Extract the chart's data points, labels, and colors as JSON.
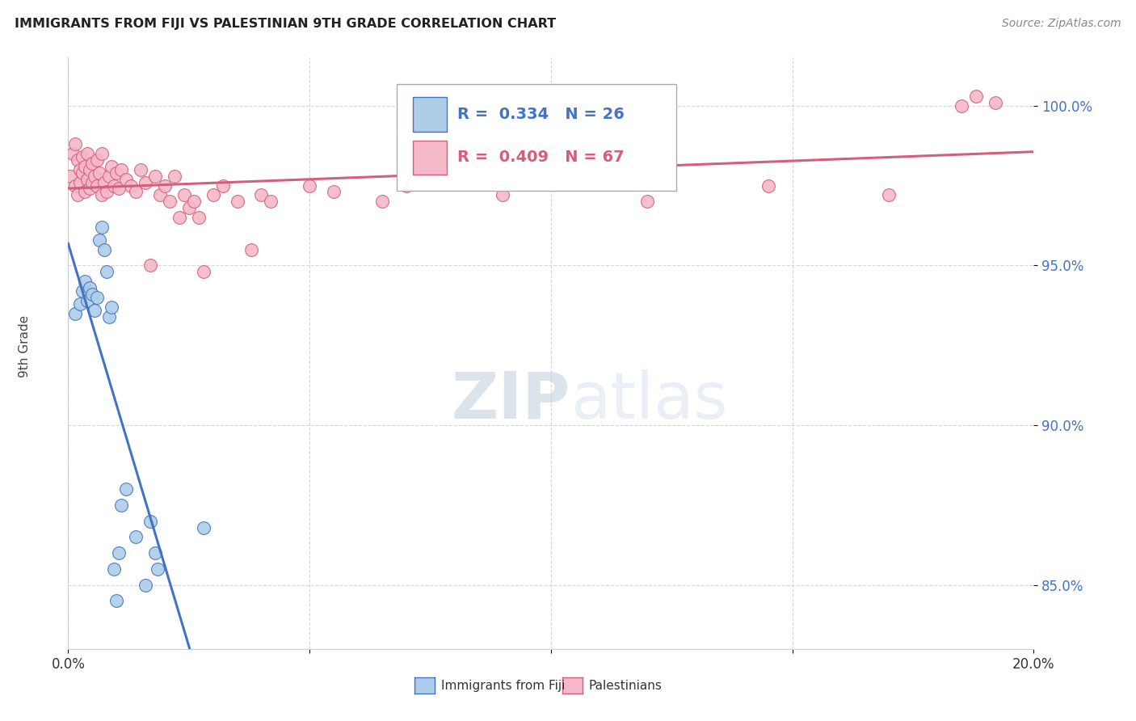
{
  "title": "IMMIGRANTS FROM FIJI VS PALESTINIAN 9TH GRADE CORRELATION CHART",
  "source": "Source: ZipAtlas.com",
  "ylabel": "9th Grade",
  "xlim": [
    0.0,
    20.0
  ],
  "ylim": [
    83.0,
    101.5
  ],
  "yticks": [
    85.0,
    90.0,
    95.0,
    100.0
  ],
  "ytick_labels": [
    "85.0%",
    "90.0%",
    "95.0%",
    "100.0%"
  ],
  "fiji_color": "#aecde8",
  "fiji_color_line": "#4472c4",
  "pal_color": "#f4b8c8",
  "pal_color_line": "#d45f7a",
  "fiji_R": 0.334,
  "fiji_N": 26,
  "pal_R": 0.409,
  "pal_N": 67,
  "legend_fiji_label": "Immigrants from Fiji",
  "legend_pal_label": "Palestinians",
  "watermark_zip": "ZIP",
  "watermark_atlas": "atlas",
  "fiji_x": [
    0.15,
    0.25,
    0.3,
    0.35,
    0.4,
    0.45,
    0.5,
    0.55,
    0.6,
    0.65,
    0.7,
    0.75,
    0.8,
    0.85,
    0.9,
    0.95,
    1.0,
    1.05,
    1.1,
    1.2,
    1.4,
    1.6,
    1.7,
    1.8,
    1.85,
    2.8
  ],
  "fiji_y": [
    93.5,
    93.8,
    94.2,
    94.5,
    93.9,
    94.3,
    94.1,
    93.6,
    94.0,
    95.8,
    96.2,
    95.5,
    94.8,
    93.4,
    93.7,
    85.5,
    84.5,
    86.0,
    87.5,
    88.0,
    86.5,
    85.0,
    87.0,
    86.0,
    85.5,
    86.8
  ],
  "pal_x": [
    0.05,
    0.1,
    0.15,
    0.15,
    0.2,
    0.2,
    0.25,
    0.25,
    0.3,
    0.3,
    0.35,
    0.35,
    0.4,
    0.4,
    0.45,
    0.45,
    0.5,
    0.5,
    0.55,
    0.6,
    0.6,
    0.65,
    0.7,
    0.7,
    0.75,
    0.8,
    0.85,
    0.9,
    0.95,
    1.0,
    1.05,
    1.1,
    1.2,
    1.3,
    1.4,
    1.5,
    1.6,
    1.7,
    1.8,
    1.9,
    2.0,
    2.1,
    2.2,
    2.3,
    2.4,
    2.5,
    2.6,
    2.7,
    2.8,
    3.0,
    3.2,
    3.5,
    3.8,
    4.0,
    4.2,
    5.0,
    5.5,
    6.5,
    7.0,
    7.5,
    9.0,
    12.0,
    14.5,
    17.0,
    18.5,
    18.8,
    19.2
  ],
  "pal_y": [
    97.8,
    98.5,
    97.5,
    98.8,
    97.2,
    98.3,
    98.0,
    97.6,
    97.9,
    98.4,
    97.3,
    98.1,
    97.7,
    98.5,
    97.4,
    98.0,
    97.6,
    98.2,
    97.8,
    97.5,
    98.3,
    97.9,
    98.5,
    97.2,
    97.6,
    97.3,
    97.8,
    98.1,
    97.5,
    97.9,
    97.4,
    98.0,
    97.7,
    97.5,
    97.3,
    98.0,
    97.6,
    95.0,
    97.8,
    97.2,
    97.5,
    97.0,
    97.8,
    96.5,
    97.2,
    96.8,
    97.0,
    96.5,
    94.8,
    97.2,
    97.5,
    97.0,
    95.5,
    97.2,
    97.0,
    97.5,
    97.3,
    97.0,
    97.5,
    97.8,
    97.2,
    97.0,
    97.5,
    97.2,
    100.0,
    100.3,
    100.1
  ]
}
